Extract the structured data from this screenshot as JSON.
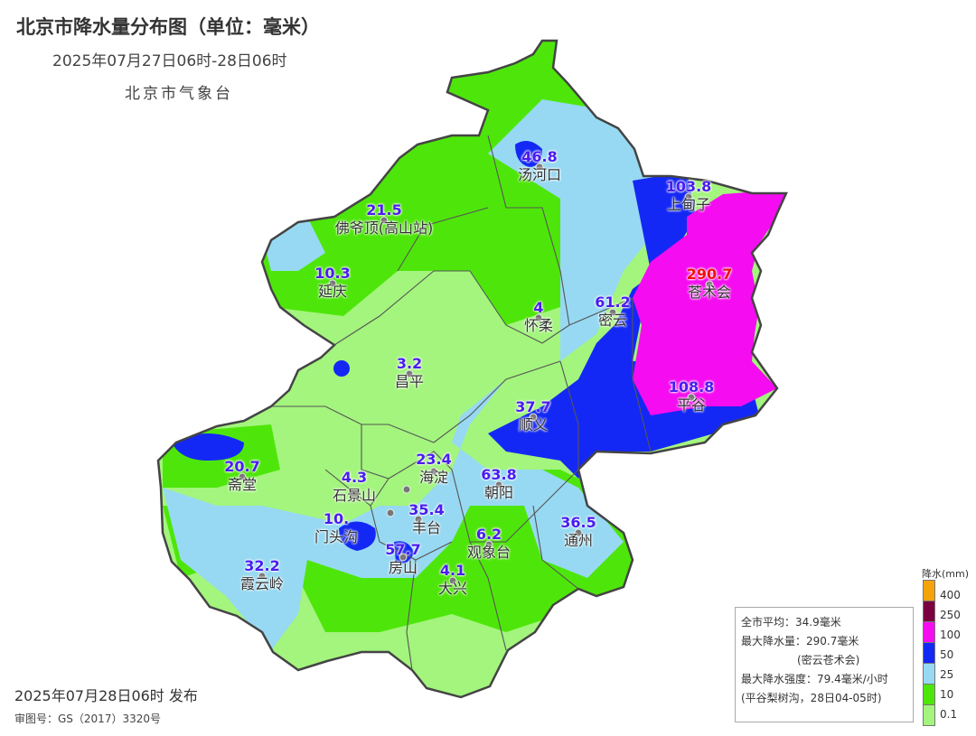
{
  "header": {
    "title": "北京市降水量分布图（单位：毫米）",
    "subtitle": "2025年07月27日06时-28日06时",
    "agency": "北京市气象台"
  },
  "footer": {
    "release": "2025年07月28日06时 发布",
    "review_no": "审图号：GS（2017）3320号"
  },
  "stats": {
    "avg": "全市平均：34.9毫米",
    "max": "最大降水量：290.7毫米",
    "max_loc": "(密云苍术会)",
    "max_intensity": "最大降水强度：79.4毫米/小时",
    "max_intensity_loc": "(平谷梨树沟，28日04-05时)"
  },
  "legend": {
    "title": "降水(mm)",
    "levels": [
      {
        "label": "400",
        "color": "#f5a30a"
      },
      {
        "label": "250",
        "color": "#7a0040"
      },
      {
        "label": "100",
        "color": "#f50cf0"
      },
      {
        "label": "50",
        "color": "#1428f5"
      },
      {
        "label": "25",
        "color": "#97d9f2"
      },
      {
        "label": "10",
        "color": "#4ee60a"
      },
      {
        "label": "0.1",
        "color": "#a3f57d"
      }
    ]
  },
  "stations": [
    {
      "value": "46.8",
      "name": "汤河口"
    },
    {
      "value": "103.8",
      "name": "上甸子"
    },
    {
      "value": "21.5",
      "name": "佛爷顶(高山站)"
    },
    {
      "value": "10.3",
      "name": "延庆"
    },
    {
      "value": "290.7",
      "name": "苍术会",
      "max": true
    },
    {
      "value": "4",
      "name": "怀柔"
    },
    {
      "value": "61.2",
      "name": "密云"
    },
    {
      "value": "3.2",
      "name": "昌平"
    },
    {
      "value": "108.8",
      "name": "平谷"
    },
    {
      "value": "37.7",
      "name": "顺义"
    },
    {
      "value": "20.7",
      "name": "斋堂"
    },
    {
      "value": "23.4",
      "name": "海淀"
    },
    {
      "value": "4.3",
      "name": "石景山"
    },
    {
      "value": "63.8",
      "name": "朝阳"
    },
    {
      "value": "10.",
      "name": "门头沟"
    },
    {
      "value": "35.4",
      "name": "丰台"
    },
    {
      "value": "36.5",
      "name": "通州"
    },
    {
      "value": "6.2",
      "name": "观象台"
    },
    {
      "value": "57.7",
      "name": "房山"
    },
    {
      "value": "32.2",
      "name": "霞云岭"
    },
    {
      "value": "4.1",
      "name": "大兴"
    }
  ]
}
